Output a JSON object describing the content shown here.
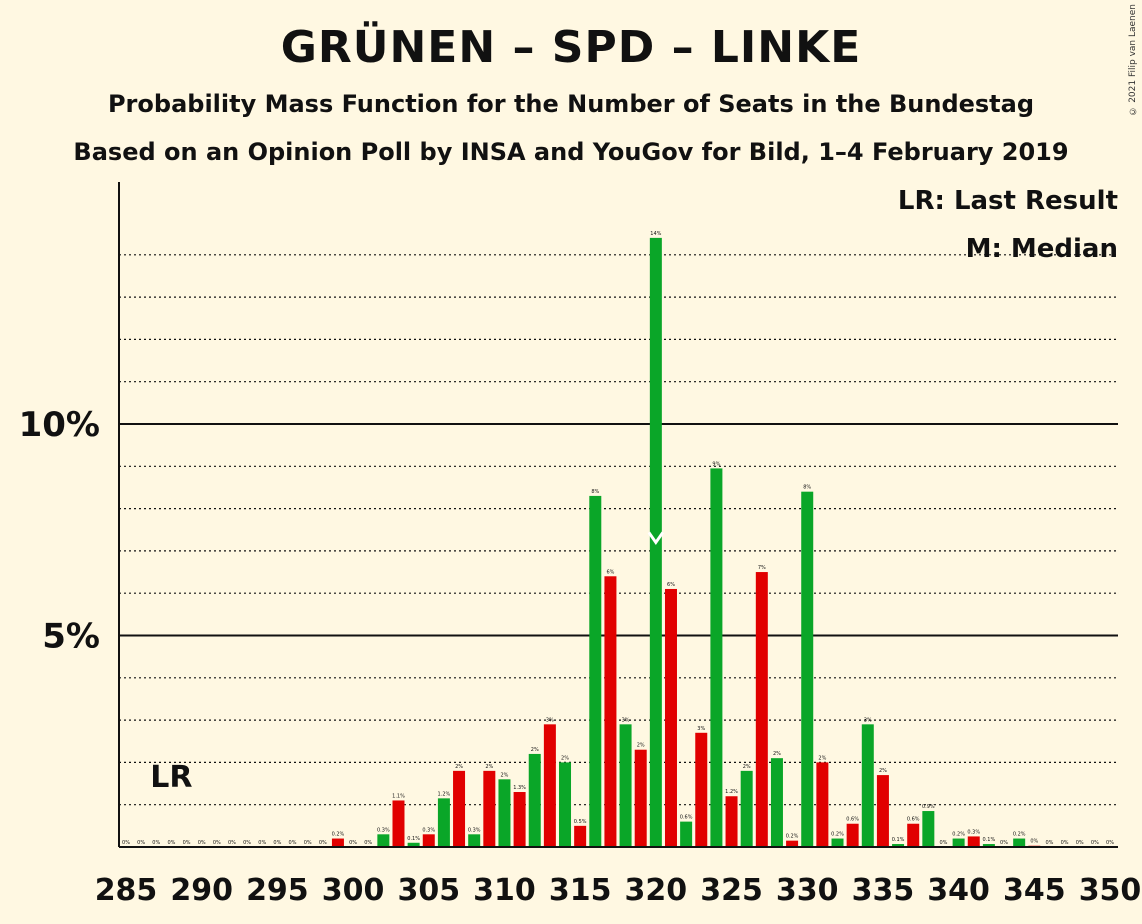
{
  "title": "GRÜNEN – SPD – LINKE",
  "subtitle": "Probability Mass Function for the Number of Seats in the Bundestag",
  "subtitle2": "Based on an Opinion Poll by INSA and YouGov for Bild, 1–4 February 2019",
  "copyright": "© 2021 Filip van Laenen",
  "legend": {
    "last_result": "LR: Last Result",
    "median": "M: Median"
  },
  "lr_label": "LR",
  "colors": {
    "odd_bar": "#e10000",
    "even_bar": "#0aa628",
    "background": "#fff8e2",
    "text": "#111111"
  },
  "chart_data": {
    "type": "bar",
    "title": "GRÜNEN – SPD – LINKE",
    "xlabel": "",
    "ylabel": "",
    "ylim": [
      0,
      15.5
    ],
    "y_ticks": [
      {
        "value": 5,
        "label": "5%"
      },
      {
        "value": 10,
        "label": "10%"
      }
    ],
    "x_ticks": [
      285,
      290,
      295,
      300,
      305,
      310,
      315,
      320,
      325,
      330,
      335,
      340,
      345,
      350
    ],
    "last_result_seat": 288,
    "median_seat": 320,
    "x": [
      285,
      286,
      287,
      288,
      289,
      290,
      291,
      292,
      293,
      294,
      295,
      296,
      297,
      298,
      299,
      300,
      301,
      302,
      303,
      304,
      305,
      306,
      307,
      308,
      309,
      310,
      311,
      312,
      313,
      314,
      315,
      316,
      317,
      318,
      319,
      320,
      321,
      322,
      323,
      324,
      325,
      326,
      327,
      328,
      329,
      330,
      331,
      332,
      333,
      334,
      335,
      336,
      337,
      338,
      339,
      340,
      341,
      342,
      343,
      344,
      345,
      346,
      347,
      348,
      349,
      350
    ],
    "values": [
      0,
      0,
      0,
      0,
      0,
      0,
      0,
      0,
      0,
      0,
      0,
      0,
      0,
      0,
      0.2,
      0,
      0,
      0.3,
      1.1,
      0.1,
      0.3,
      1.15,
      1.8,
      0.3,
      1.8,
      1.6,
      1.3,
      2.2,
      2.9,
      2.0,
      0.5,
      8.3,
      6.4,
      2.9,
      2.3,
      14.4,
      6.1,
      0.6,
      2.7,
      8.95,
      1.2,
      1.8,
      6.5,
      2.1,
      0.15,
      8.4,
      2.0,
      0.2,
      0.55,
      2.9,
      1.7,
      0.07,
      0.55,
      0.85,
      0,
      0.2,
      0.25,
      0.07,
      0,
      0.2,
      0.03,
      0,
      0,
      0,
      0,
      0
    ],
    "labels": [
      "0%",
      "0%",
      "0%",
      "0%",
      "0%",
      "0%",
      "0%",
      "0%",
      "0%",
      "0%",
      "0%",
      "0%",
      "0%",
      "0%",
      "0.2%",
      "0%",
      "0%",
      "0.3%",
      "1.1%",
      "0.1%",
      "0.3%",
      "1.2%",
      "2%",
      "0.3%",
      "2%",
      "2%",
      "1.3%",
      "2%",
      "3%",
      "2%",
      "0.5%",
      "8%",
      "6%",
      "3%",
      "2%",
      "14%",
      "6%",
      "0.6%",
      "3%",
      "9%",
      "1.2%",
      "2%",
      "7%",
      "2%",
      "0.2%",
      "8%",
      "2%",
      "0.2%",
      "0.6%",
      "3%",
      "2%",
      "0.1%",
      "0.6%",
      "0.9%",
      "0%",
      "0.2%",
      "0.3%",
      "0.1%",
      "0%",
      "0.2%",
      "0%",
      "0%",
      "0%",
      "0%",
      "0%",
      "0%"
    ]
  }
}
